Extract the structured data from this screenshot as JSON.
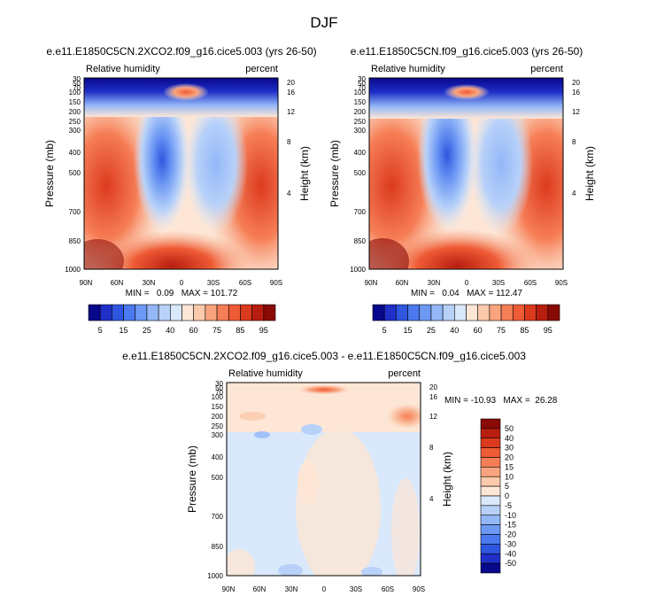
{
  "title": "DJF",
  "chart_data": [
    {
      "type": "heatmap",
      "title": "e.e11.E1850C5CN.2XCO2.f09_g16.cice5.003 (yrs 26-50)",
      "left_label": "Relative humidity",
      "right_label": "percent",
      "ylabel": "Pressure (mb)",
      "ylabel_right": "Height (km)",
      "x_ticks": [
        "90N",
        "60N",
        "30N",
        "0",
        "30S",
        "60S",
        "90S"
      ],
      "y_ticks": [
        "30",
        "50",
        "70",
        "100",
        "150",
        "200",
        "250",
        "300",
        "400",
        "500",
        "700",
        "850",
        "1000"
      ],
      "y_right_ticks": [
        "20",
        "16",
        "12",
        "8",
        "4"
      ],
      "min_max_text": "MIN =   0.09   MAX = 101.72",
      "min": 0.09,
      "max": 101.72
    },
    {
      "type": "heatmap",
      "title": "e.e11.E1850C5CN.f09_g16.cice5.003 (yrs 26-50)",
      "left_label": "Relative humidity",
      "right_label": "percent",
      "ylabel": "Pressure (mb)",
      "ylabel_right": "Height (km)",
      "x_ticks": [
        "90N",
        "60N",
        "30N",
        "0",
        "30S",
        "60S",
        "90S"
      ],
      "y_ticks": [
        "30",
        "50",
        "70",
        "100",
        "150",
        "200",
        "250",
        "300",
        "400",
        "500",
        "700",
        "850",
        "1000"
      ],
      "y_right_ticks": [
        "20",
        "16",
        "12",
        "8",
        "4"
      ],
      "min_max_text": "MIN =   0.04   MAX = 112.47",
      "min": 0.04,
      "max": 112.47
    },
    {
      "type": "heatmap",
      "title": "e.e11.E1850C5CN.2XCO2.f09_g16.cice5.003 - e.e11.E1850C5CN.f09_g16.cice5.003",
      "left_label": "Relative humidity",
      "right_label": "percent",
      "ylabel": "Pressure (mb)",
      "ylabel_right": "Height (km)",
      "x_ticks": [
        "90N",
        "60N",
        "30N",
        "0",
        "30S",
        "60S",
        "90S"
      ],
      "y_ticks": [
        "30",
        "50",
        "70",
        "100",
        "150",
        "200",
        "250",
        "300",
        "400",
        "500",
        "700",
        "850",
        "1000"
      ],
      "y_right_ticks": [
        "20",
        "16",
        "12",
        "8",
        "4"
      ],
      "min_max_text": "MIN = -10.93   MAX =  26.28",
      "min": -10.93,
      "max": 26.28
    }
  ],
  "colorbar_top": {
    "labels": [
      "5",
      "15",
      "25",
      "40",
      "60",
      "75",
      "85",
      "95"
    ],
    "colors": [
      "#08088c",
      "#1f2fc7",
      "#2f56e0",
      "#4b79f0",
      "#6d98f4",
      "#93b7f7",
      "#b7d1f9",
      "#d9e8fb",
      "#fde6d6",
      "#fbc9ab",
      "#f9a47e",
      "#f67e56",
      "#ef5b35",
      "#dc3a1e",
      "#b81e10",
      "#8a0a06"
    ]
  },
  "colorbar_diff": {
    "labels": [
      "50",
      "40",
      "30",
      "20",
      "15",
      "10",
      "5",
      "0",
      "-5",
      "-10",
      "-15",
      "-20",
      "-30",
      "-40",
      "-50"
    ],
    "colors": [
      "#8a0a06",
      "#b81e10",
      "#dc3a1e",
      "#ef5b35",
      "#f67e56",
      "#f9a47e",
      "#fbc9ab",
      "#fde6d6",
      "#d9e8fb",
      "#b7d1f9",
      "#93b7f7",
      "#6d98f4",
      "#4b79f0",
      "#2f56e0",
      "#1f2fc7",
      "#08088c"
    ]
  }
}
